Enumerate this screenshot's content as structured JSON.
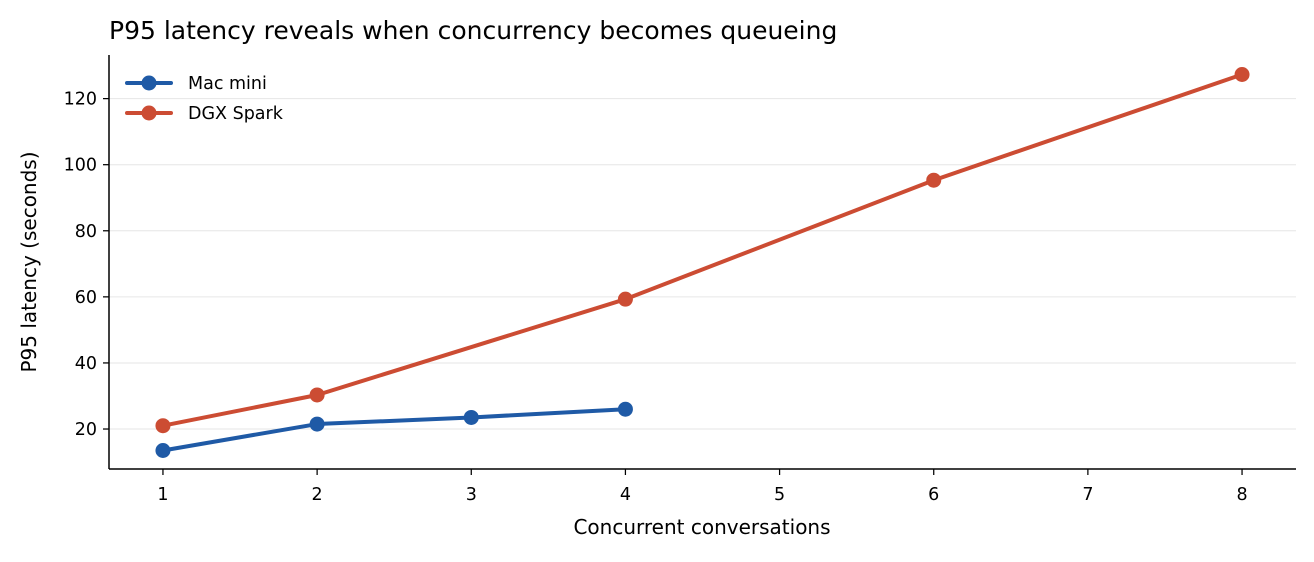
{
  "chart_data": {
    "type": "line",
    "title": "P95 latency reveals when concurrency becomes queueing",
    "xlabel": "Concurrent conversations",
    "ylabel": "P95 latency (seconds)",
    "xlim": [
      0.65,
      8.35
    ],
    "ylim": [
      7.9,
      133.2
    ],
    "xticks": [
      1,
      2,
      3,
      4,
      5,
      6,
      7,
      8
    ],
    "yticks": [
      20,
      40,
      60,
      80,
      100,
      120
    ],
    "grid": "horizontal",
    "legend_position": "top-left",
    "series": [
      {
        "name": "Mac mini",
        "color": "#1f5aa6",
        "x": [
          1,
          2,
          3,
          4
        ],
        "y": [
          13.5,
          21.5,
          23.5,
          26.0
        ]
      },
      {
        "name": "DGX Spark",
        "color": "#cc4c33",
        "x": [
          1,
          2,
          4,
          6,
          8
        ],
        "y": [
          21.0,
          30.3,
          59.3,
          95.3,
          127.3
        ]
      }
    ]
  }
}
